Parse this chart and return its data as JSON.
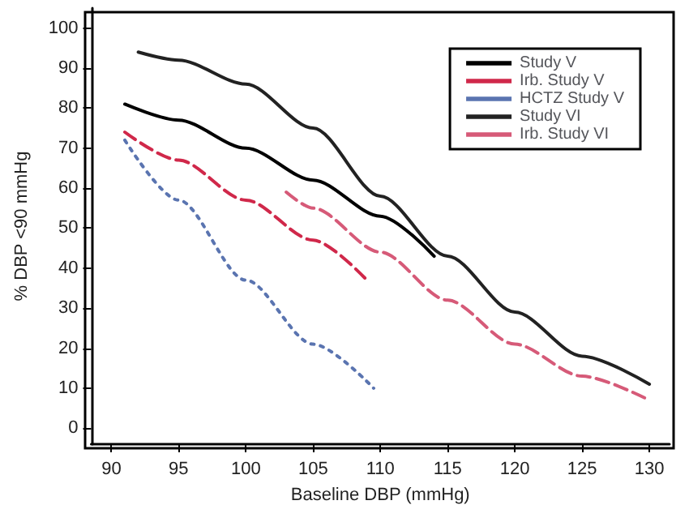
{
  "chart_data": {
    "type": "line",
    "xlabel": "Baseline DBP (mmHg)",
    "ylabel": "% DBP <90 mmHg",
    "xlim": [
      88.5,
      131.5
    ],
    "ylim": [
      -4,
      105
    ],
    "xticks": [
      90,
      95,
      100,
      105,
      110,
      115,
      120,
      125,
      130
    ],
    "yticks": [
      0,
      10,
      20,
      30,
      40,
      50,
      60,
      70,
      80,
      90,
      100
    ],
    "grid": false,
    "legend": "top right",
    "marker": "none",
    "series": [
      {
        "name": "Study V",
        "color": "#000000",
        "line_style": "solid",
        "x": [
          91,
          95,
          100,
          105,
          110,
          114
        ],
        "values": [
          81,
          77,
          70,
          62,
          53,
          43
        ]
      },
      {
        "name": "Irb. Study V",
        "color": "#d0284a",
        "line_style": "dashed",
        "x": [
          91,
          95,
          100,
          105,
          109
        ],
        "values": [
          74,
          67,
          57,
          47,
          37
        ]
      },
      {
        "name": "HCTZ Study V",
        "color": "#5a74b0",
        "line_style": "dotted",
        "x": [
          91,
          95,
          100,
          105,
          109.5
        ],
        "values": [
          72,
          57,
          37,
          21,
          10
        ]
      },
      {
        "name": "Study VI",
        "color": "#222222",
        "line_style": "solid",
        "x": [
          92,
          95,
          100,
          105,
          110,
          115,
          120,
          125,
          130
        ],
        "values": [
          94,
          92,
          86,
          75,
          58,
          43,
          29,
          18,
          11
        ]
      },
      {
        "name": "Irb. Study VI",
        "color": "#d65a78",
        "line_style": "dashed",
        "x": [
          103,
          105,
          110,
          115,
          120,
          125,
          130
        ],
        "values": [
          59,
          55,
          44,
          32,
          21,
          13,
          7
        ]
      }
    ]
  }
}
